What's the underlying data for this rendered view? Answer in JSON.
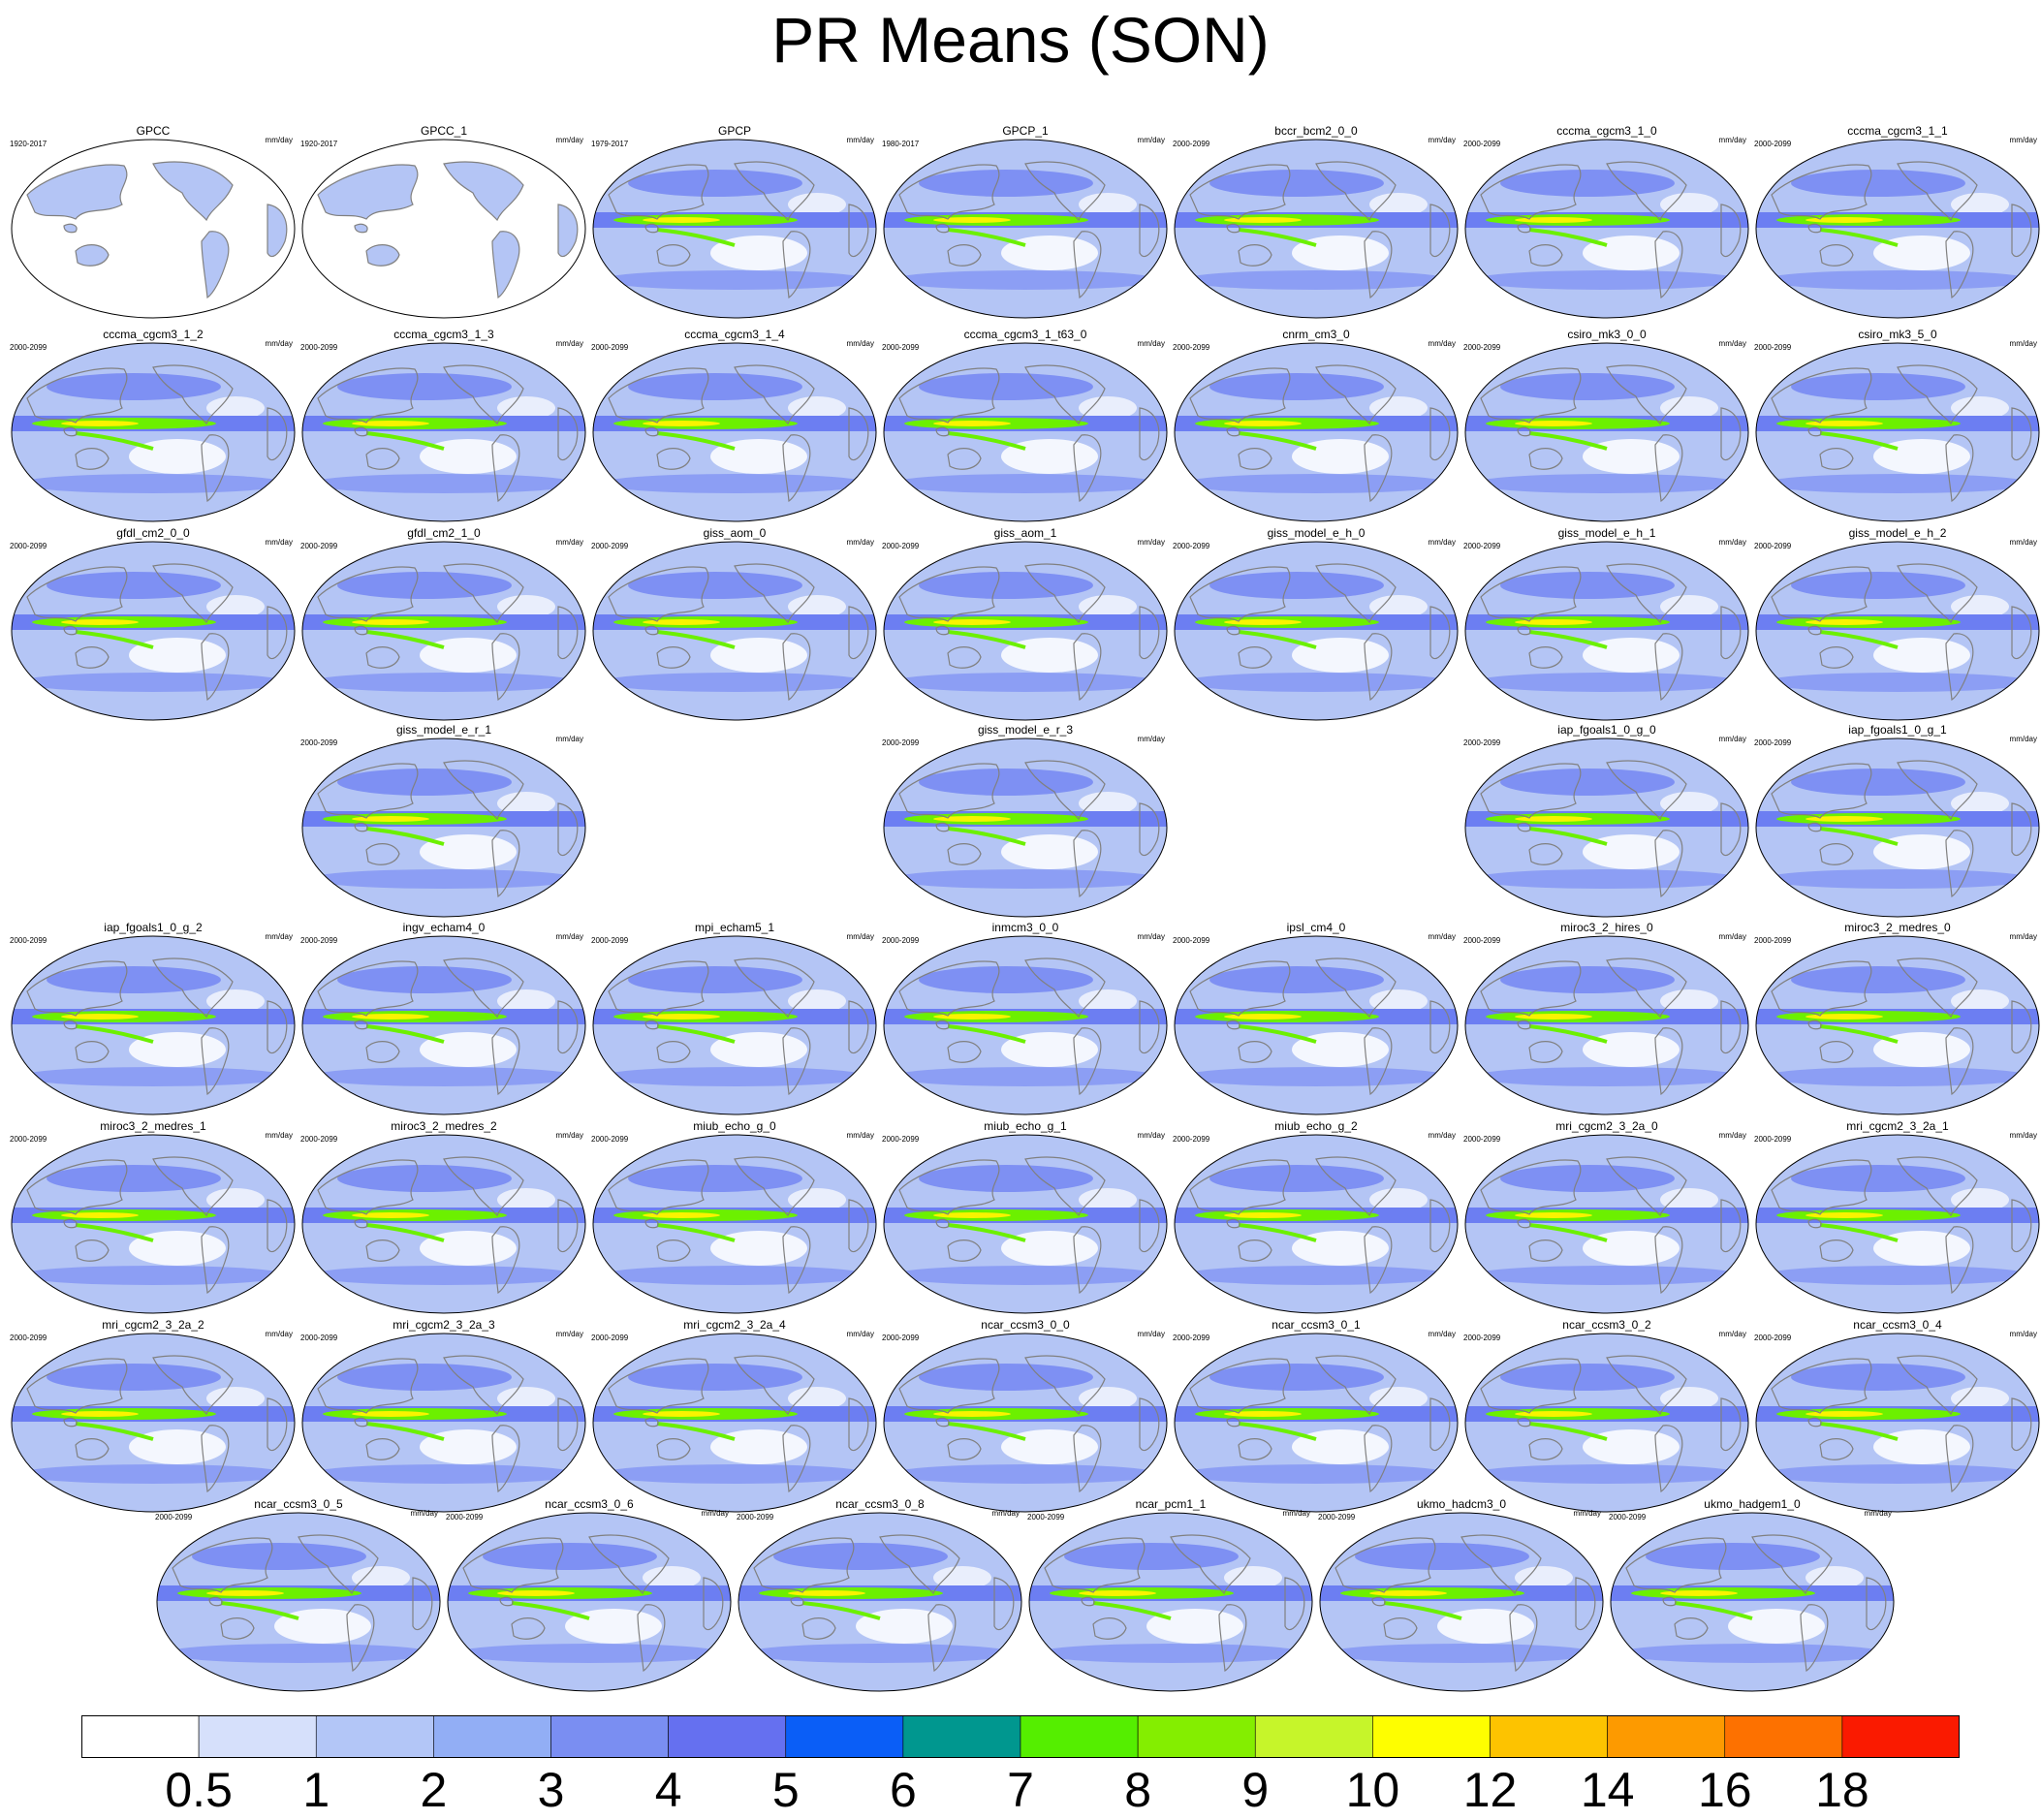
{
  "title": "PR Means (SON)",
  "units": "mm/day",
  "colorbar": {
    "labels": [
      "0.5",
      "1",
      "2",
      "3",
      "4",
      "5",
      "6",
      "7",
      "8",
      "9",
      "10",
      "12",
      "14",
      "16",
      "18"
    ],
    "colors": [
      "#ffffff",
      "#d6e0fb",
      "#b3c6f7",
      "#92aef5",
      "#7a8ef2",
      "#6570f0",
      "#0a5ef7",
      "#00978f",
      "#55ee00",
      "#84ee00",
      "#c6f52a",
      "#fefe00",
      "#fdc300",
      "#fd9a00",
      "#fd7100",
      "#fa1a00"
    ]
  },
  "palette": {
    "ocean_base": "#b4c5f5",
    "band_mid": "#6c7ef2",
    "band_high": "#6cf000",
    "band_peak": "#f9f300",
    "dry": "#ffffff",
    "coast": "#808080"
  },
  "panels": [
    {
      "name": "GPCC",
      "period": "1920-2017",
      "type": "land"
    },
    {
      "name": "GPCC_1",
      "period": "1920-2017",
      "type": "land"
    },
    {
      "name": "GPCP",
      "period": "1979-2017",
      "type": "full"
    },
    {
      "name": "GPCP_1",
      "period": "1980-2017",
      "type": "full"
    },
    {
      "name": "bccr_bcm2_0_0",
      "period": "2000-2099",
      "type": "full"
    },
    {
      "name": "cccma_cgcm3_1_0",
      "period": "2000-2099",
      "type": "full"
    },
    {
      "name": "cccma_cgcm3_1_1",
      "period": "2000-2099",
      "type": "full"
    },
    {
      "name": "cccma_cgcm3_1_2",
      "period": "2000-2099",
      "type": "full"
    },
    {
      "name": "cccma_cgcm3_1_3",
      "period": "2000-2099",
      "type": "full"
    },
    {
      "name": "cccma_cgcm3_1_4",
      "period": "2000-2099",
      "type": "full"
    },
    {
      "name": "cccma_cgcm3_1_t63_0",
      "period": "2000-2099",
      "type": "full"
    },
    {
      "name": "cnrm_cm3_0",
      "period": "2000-2099",
      "type": "full"
    },
    {
      "name": "csiro_mk3_0_0",
      "period": "2000-2099",
      "type": "full"
    },
    {
      "name": "csiro_mk3_5_0",
      "period": "2000-2099",
      "type": "full"
    },
    {
      "name": "gfdl_cm2_0_0",
      "period": "2000-2099",
      "type": "full"
    },
    {
      "name": "gfdl_cm2_1_0",
      "period": "2000-2099",
      "type": "full"
    },
    {
      "name": "giss_aom_0",
      "period": "2000-2099",
      "type": "full"
    },
    {
      "name": "giss_aom_1",
      "period": "2000-2099",
      "type": "full"
    },
    {
      "name": "giss_model_e_h_0",
      "period": "2000-2099",
      "type": "full"
    },
    {
      "name": "giss_model_e_h_1",
      "period": "2000-2099",
      "type": "full"
    },
    {
      "name": "giss_model_e_h_2",
      "period": "2000-2099",
      "type": "full"
    },
    {
      "name": "giss_model_e_r_1",
      "period": "2000-2099",
      "type": "full"
    },
    {
      "name": "giss_model_e_r_3",
      "period": "2000-2099",
      "type": "full"
    },
    {
      "name": "iap_fgoals1_0_g_0",
      "period": "2000-2099",
      "type": "full"
    },
    {
      "name": "iap_fgoals1_0_g_1",
      "period": "2000-2099",
      "type": "full"
    },
    {
      "name": "iap_fgoals1_0_g_2",
      "period": "2000-2099",
      "type": "full"
    },
    {
      "name": "ingv_echam4_0",
      "period": "2000-2099",
      "type": "full"
    },
    {
      "name": "mpi_echam5_1",
      "period": "2000-2099",
      "type": "full"
    },
    {
      "name": "inmcm3_0_0",
      "period": "2000-2099",
      "type": "full"
    },
    {
      "name": "ipsl_cm4_0",
      "period": "2000-2099",
      "type": "full"
    },
    {
      "name": "miroc3_2_hires_0",
      "period": "2000-2099",
      "type": "full"
    },
    {
      "name": "miroc3_2_medres_0",
      "period": "2000-2099",
      "type": "full"
    },
    {
      "name": "miroc3_2_medres_1",
      "period": "2000-2099",
      "type": "full"
    },
    {
      "name": "miroc3_2_medres_2",
      "period": "2000-2099",
      "type": "full"
    },
    {
      "name": "miub_echo_g_0",
      "period": "2000-2099",
      "type": "full"
    },
    {
      "name": "miub_echo_g_1",
      "period": "2000-2099",
      "type": "full"
    },
    {
      "name": "miub_echo_g_2",
      "period": "2000-2099",
      "type": "full"
    },
    {
      "name": "mri_cgcm2_3_2a_0",
      "period": "2000-2099",
      "type": "full"
    },
    {
      "name": "mri_cgcm2_3_2a_1",
      "period": "2000-2099",
      "type": "full"
    },
    {
      "name": "mri_cgcm2_3_2a_2",
      "period": "2000-2099",
      "type": "full"
    },
    {
      "name": "mri_cgcm2_3_2a_3",
      "period": "2000-2099",
      "type": "full"
    },
    {
      "name": "mri_cgcm2_3_2a_4",
      "period": "2000-2099",
      "type": "full"
    },
    {
      "name": "ncar_ccsm3_0_0",
      "period": "2000-2099",
      "type": "full"
    },
    {
      "name": "ncar_ccsm3_0_1",
      "period": "2000-2099",
      "type": "full"
    },
    {
      "name": "ncar_ccsm3_0_2",
      "period": "2000-2099",
      "type": "full"
    },
    {
      "name": "ncar_ccsm3_0_4",
      "period": "2000-2099",
      "type": "full"
    },
    {
      "name": "ncar_ccsm3_0_5",
      "period": "2000-2099",
      "type": "full"
    },
    {
      "name": "ncar_ccsm3_0_6",
      "period": "2000-2099",
      "type": "full"
    },
    {
      "name": "ncar_ccsm3_0_8",
      "period": "2000-2099",
      "type": "full"
    },
    {
      "name": "ncar_pcm1_1",
      "period": "2000-2099",
      "type": "full"
    },
    {
      "name": "ukmo_hadcm3_0",
      "period": "2000-2099",
      "type": "full"
    },
    {
      "name": "ukmo_hadgem1_0",
      "period": "2000-2099",
      "type": "full"
    }
  ]
}
